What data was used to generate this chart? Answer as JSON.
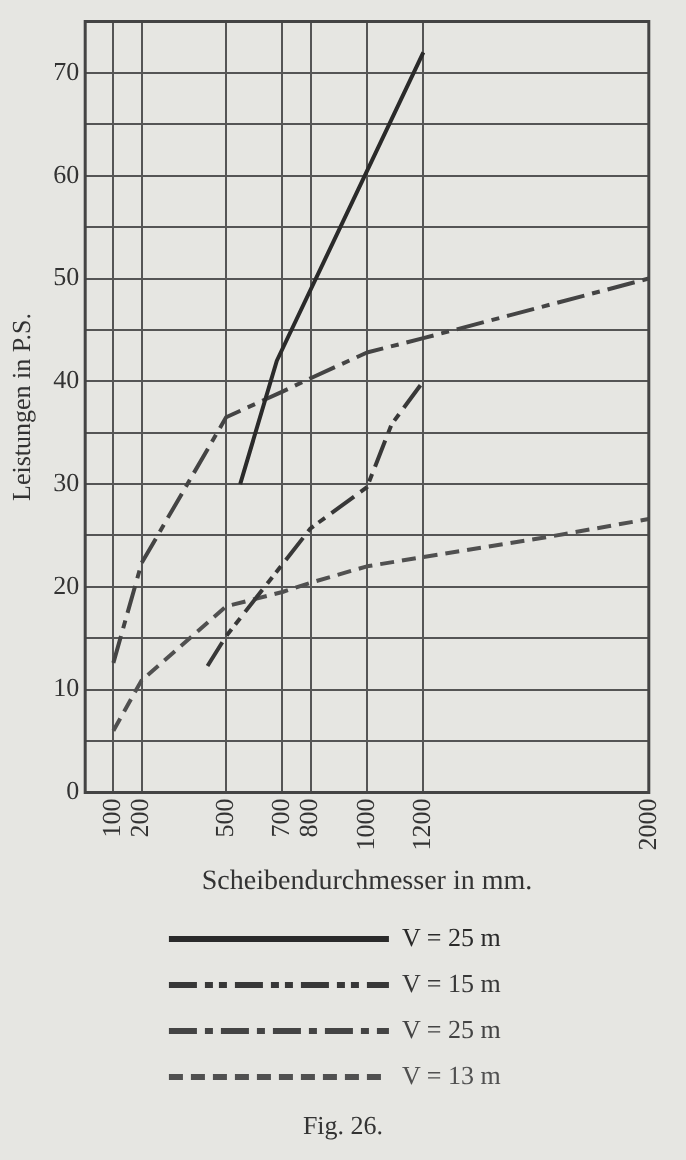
{
  "chart_data": {
    "type": "line",
    "xlabel": "Scheibendurchmesser in mm.",
    "ylabel": "Leistungen in P.S.",
    "xlim": [
      0,
      2000
    ],
    "xticks": [
      {
        "value": 0,
        "label": null
      },
      100,
      200,
      500,
      700,
      800,
      1000,
      1200,
      2000
    ],
    "ylim": [
      0,
      75
    ],
    "yticks": [
      0,
      {
        "value": 5,
        "label": null
      },
      10,
      {
        "value": 15,
        "label": null
      },
      20,
      {
        "value": 25,
        "label": null
      },
      30,
      {
        "value": 35,
        "label": null
      },
      40,
      {
        "value": 45,
        "label": null
      },
      50,
      {
        "value": 55,
        "label": null
      },
      60,
      {
        "value": 65,
        "label": null
      },
      70,
      {
        "value": 75,
        "label": null
      }
    ],
    "grid": true,
    "legend": "bottom",
    "marker": "none",
    "series": [
      {
        "name": "V = 25 m",
        "color": "#2a2a2a",
        "line_style": "solid",
        "x": [
          550,
          680,
          1200
        ],
        "values": [
          30,
          42,
          72
        ]
      },
      {
        "name": "V = 15 m",
        "color": "#383838",
        "line_style": "dashdotdot",
        "x": [
          434,
          500,
          700,
          800,
          1000,
          1087,
          1200
        ],
        "values": [
          12.3,
          15.2,
          22.2,
          25.7,
          29.7,
          35.8,
          40
        ]
      },
      {
        "name": "V = 25 m",
        "color": "#444444",
        "line_style": "dashdot",
        "x": [
          100,
          200,
          500,
          700,
          800,
          1000,
          1200,
          2000
        ],
        "values": [
          12.6,
          22.3,
          36.5,
          39,
          40.3,
          42.8,
          44.2,
          50
        ]
      },
      {
        "name": "V = 13 m",
        "color": "#505050",
        "line_style": "dashed",
        "x": [
          100,
          200,
          500,
          700,
          800,
          1000,
          1200,
          1630,
          2000
        ],
        "values": [
          6,
          10.9,
          18.1,
          19.5,
          20.4,
          22,
          22.9,
          24.8,
          26.6
        ]
      }
    ],
    "annotations": [
      "Fig. 26."
    ]
  }
}
